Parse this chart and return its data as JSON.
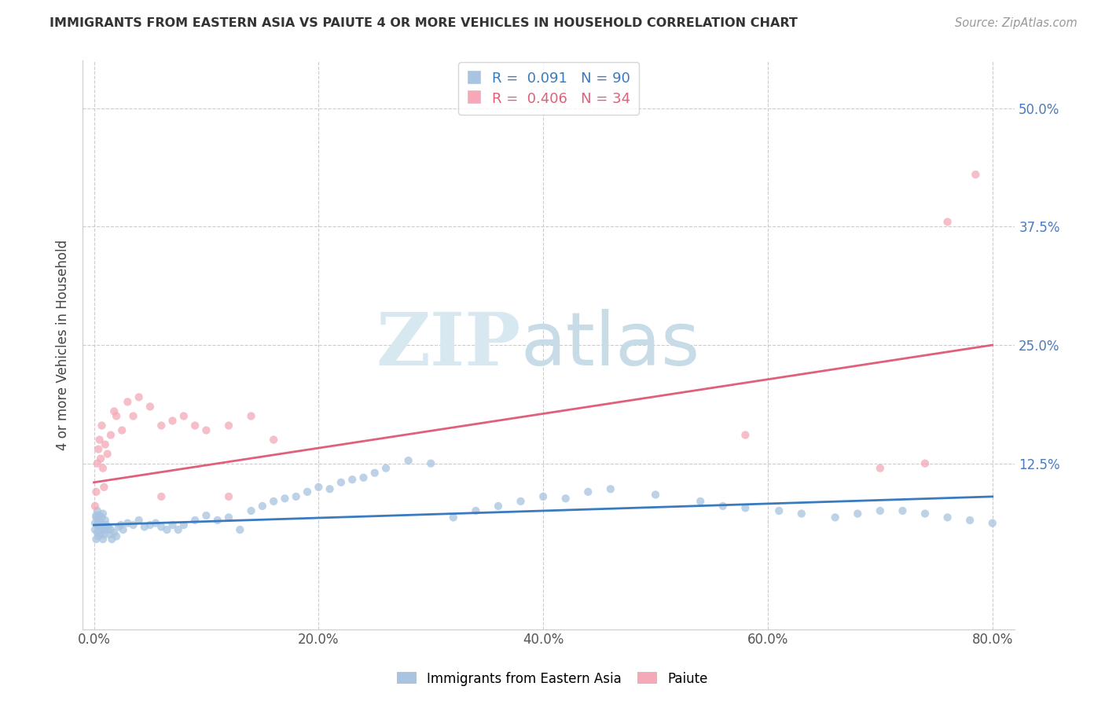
{
  "title": "IMMIGRANTS FROM EASTERN ASIA VS PAIUTE 4 OR MORE VEHICLES IN HOUSEHOLD CORRELATION CHART",
  "source": "Source: ZipAtlas.com",
  "ylabel": "4 or more Vehicles in Household",
  "xlim": [
    -0.01,
    0.82
  ],
  "ylim": [
    -0.05,
    0.55
  ],
  "xtick_labels": [
    "0.0%",
    "20.0%",
    "40.0%",
    "60.0%",
    "80.0%"
  ],
  "xtick_vals": [
    0.0,
    0.2,
    0.4,
    0.6,
    0.8
  ],
  "ytick_labels": [
    "12.5%",
    "25.0%",
    "37.5%",
    "50.0%"
  ],
  "ytick_vals": [
    0.125,
    0.25,
    0.375,
    0.5
  ],
  "legend_label1": "R =  0.091   N = 90",
  "legend_label2": "R =  0.406   N = 34",
  "legend_series1": "Immigrants from Eastern Asia",
  "legend_series2": "Paiute",
  "color1": "#a8c4e0",
  "color2": "#f4a8b8",
  "line_color1": "#3a7abf",
  "line_color2": "#e0607a",
  "watermark_zip": "ZIP",
  "watermark_atlas": "atlas",
  "R1": 0.091,
  "N1": 90,
  "R2": 0.406,
  "N2": 34,
  "line1_x0": 0.0,
  "line1_y0": 0.06,
  "line1_x1": 0.8,
  "line1_y1": 0.09,
  "line2_x0": 0.0,
  "line2_y0": 0.105,
  "line2_x1": 0.8,
  "line2_y1": 0.25,
  "scatter1_x": [
    0.001,
    0.001,
    0.002,
    0.002,
    0.002,
    0.003,
    0.003,
    0.003,
    0.004,
    0.004,
    0.004,
    0.005,
    0.005,
    0.005,
    0.006,
    0.006,
    0.007,
    0.007,
    0.007,
    0.008,
    0.008,
    0.008,
    0.009,
    0.009,
    0.01,
    0.01,
    0.011,
    0.012,
    0.013,
    0.014,
    0.015,
    0.016,
    0.018,
    0.02,
    0.022,
    0.024,
    0.026,
    0.03,
    0.035,
    0.04,
    0.045,
    0.05,
    0.055,
    0.06,
    0.065,
    0.07,
    0.075,
    0.08,
    0.09,
    0.1,
    0.11,
    0.12,
    0.13,
    0.14,
    0.15,
    0.16,
    0.17,
    0.18,
    0.19,
    0.2,
    0.21,
    0.22,
    0.23,
    0.24,
    0.25,
    0.26,
    0.28,
    0.3,
    0.32,
    0.34,
    0.36,
    0.38,
    0.4,
    0.42,
    0.44,
    0.46,
    0.5,
    0.54,
    0.56,
    0.58,
    0.61,
    0.63,
    0.66,
    0.68,
    0.7,
    0.72,
    0.74,
    0.76,
    0.78,
    0.8
  ],
  "scatter1_y": [
    0.062,
    0.055,
    0.068,
    0.045,
    0.07,
    0.06,
    0.052,
    0.075,
    0.058,
    0.065,
    0.048,
    0.07,
    0.058,
    0.052,
    0.062,
    0.05,
    0.06,
    0.055,
    0.068,
    0.045,
    0.058,
    0.072,
    0.05,
    0.06,
    0.055,
    0.065,
    0.06,
    0.055,
    0.058,
    0.05,
    0.055,
    0.045,
    0.052,
    0.048,
    0.058,
    0.06,
    0.055,
    0.062,
    0.06,
    0.065,
    0.058,
    0.06,
    0.062,
    0.058,
    0.055,
    0.06,
    0.055,
    0.06,
    0.065,
    0.07,
    0.065,
    0.068,
    0.055,
    0.075,
    0.08,
    0.085,
    0.088,
    0.09,
    0.095,
    0.1,
    0.098,
    0.105,
    0.108,
    0.11,
    0.115,
    0.12,
    0.128,
    0.125,
    0.068,
    0.075,
    0.08,
    0.085,
    0.09,
    0.088,
    0.095,
    0.098,
    0.092,
    0.085,
    0.08,
    0.078,
    0.075,
    0.072,
    0.068,
    0.072,
    0.075,
    0.075,
    0.072,
    0.068,
    0.065,
    0.062
  ],
  "scatter2_x": [
    0.001,
    0.002,
    0.003,
    0.004,
    0.005,
    0.006,
    0.007,
    0.008,
    0.009,
    0.01,
    0.012,
    0.015,
    0.018,
    0.02,
    0.025,
    0.03,
    0.035,
    0.04,
    0.05,
    0.06,
    0.07,
    0.08,
    0.09,
    0.1,
    0.12,
    0.14,
    0.16,
    0.06,
    0.12,
    0.58,
    0.7,
    0.74,
    0.76,
    0.785
  ],
  "scatter2_y": [
    0.08,
    0.095,
    0.125,
    0.14,
    0.15,
    0.13,
    0.165,
    0.12,
    0.1,
    0.145,
    0.135,
    0.155,
    0.18,
    0.175,
    0.16,
    0.19,
    0.175,
    0.195,
    0.185,
    0.165,
    0.17,
    0.175,
    0.165,
    0.16,
    0.165,
    0.175,
    0.15,
    0.09,
    0.09,
    0.155,
    0.12,
    0.125,
    0.38,
    0.43
  ]
}
